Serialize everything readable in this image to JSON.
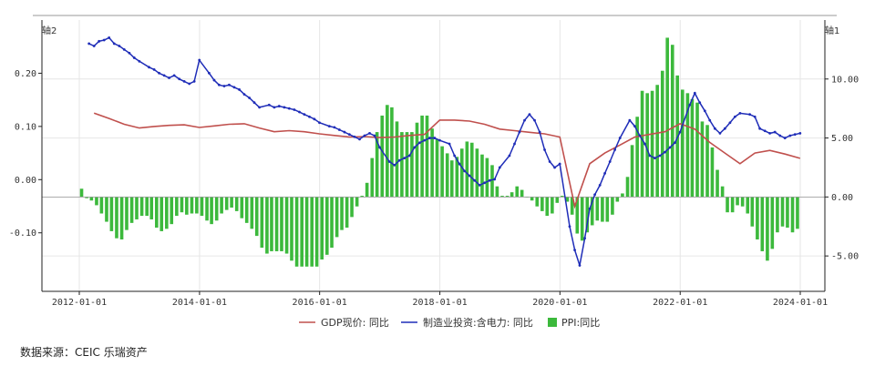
{
  "source_note": "数据来源：CEIC 乐瑞资产",
  "colors": {
    "gdp": "#c0504d",
    "manuf": "#1f2db8",
    "ppi": "#3cb93c",
    "axis": "#222222",
    "grid": "#e6e6e6",
    "top_rule": "#bbbbbb"
  },
  "chart_data": {
    "type": "bar+line",
    "legend_placement": "bottom",
    "grid": true,
    "x_axis": {
      "range": [
        "2012-01-01",
        "2024-01-01"
      ],
      "ticks": [
        "2012-01-01",
        "2014-01-01",
        "2016-01-01",
        "2018-01-01",
        "2020-01-01",
        "2022-01-01",
        "2024-01-01"
      ]
    },
    "y_left": {
      "label": "轴2",
      "range": [
        -0.21,
        0.3
      ],
      "ticks": [
        0.2,
        0.1,
        0.0,
        -0.1
      ],
      "tick_labels": [
        "0.20",
        "0.10",
        "0.00",
        "-0.10"
      ]
    },
    "y_right": {
      "label": "轴1",
      "range": [
        -8.0,
        15.0
      ],
      "ticks": [
        10.0,
        5.0,
        0.0,
        -5.0
      ],
      "tick_labels": [
        "10.00",
        "5.00",
        "0.00",
        "-5.00"
      ]
    },
    "series": [
      {
        "name": "GDP现价: 同比",
        "type": "line",
        "axis": "left",
        "marker": "none",
        "points": [
          [
            "2012-03-31",
            0.125
          ],
          [
            "2012-06-30",
            0.115
          ],
          [
            "2012-09-30",
            0.104
          ],
          [
            "2012-12-31",
            0.097
          ],
          [
            "2013-03-31",
            0.1
          ],
          [
            "2013-06-30",
            0.102
          ],
          [
            "2013-09-30",
            0.103
          ],
          [
            "2013-12-31",
            0.098
          ],
          [
            "2014-03-31",
            0.101
          ],
          [
            "2014-06-30",
            0.104
          ],
          [
            "2014-09-30",
            0.105
          ],
          [
            "2014-12-31",
            0.097
          ],
          [
            "2015-03-31",
            0.09
          ],
          [
            "2015-06-30",
            0.092
          ],
          [
            "2015-09-30",
            0.09
          ],
          [
            "2015-12-31",
            0.086
          ],
          [
            "2016-03-31",
            0.083
          ],
          [
            "2016-06-30",
            0.08
          ],
          [
            "2016-09-30",
            0.081
          ],
          [
            "2016-12-31",
            0.079
          ],
          [
            "2017-03-31",
            0.08
          ],
          [
            "2017-06-30",
            0.083
          ],
          [
            "2017-09-30",
            0.085
          ],
          [
            "2017-12-31",
            0.112
          ],
          [
            "2018-03-31",
            0.112
          ],
          [
            "2018-06-30",
            0.11
          ],
          [
            "2018-09-30",
            0.104
          ],
          [
            "2018-12-31",
            0.095
          ],
          [
            "2019-03-31",
            0.092
          ],
          [
            "2019-06-30",
            0.089
          ],
          [
            "2019-09-30",
            0.086
          ],
          [
            "2019-12-31",
            0.08
          ],
          [
            "2020-03-31",
            -0.05
          ],
          [
            "2020-06-30",
            0.03
          ],
          [
            "2020-09-30",
            0.05
          ],
          [
            "2020-12-31",
            0.065
          ],
          [
            "2021-03-31",
            0.08
          ],
          [
            "2021-06-30",
            0.085
          ],
          [
            "2021-09-30",
            0.09
          ],
          [
            "2021-12-31",
            0.105
          ],
          [
            "2022-03-31",
            0.095
          ],
          [
            "2022-06-30",
            0.07
          ],
          [
            "2022-09-30",
            0.05
          ],
          [
            "2022-12-31",
            0.03
          ],
          [
            "2023-03-31",
            0.05
          ],
          [
            "2023-06-30",
            0.055
          ],
          [
            "2023-09-30",
            0.048
          ],
          [
            "2023-12-31",
            0.04
          ]
        ]
      },
      {
        "name": "制造业投资:含电力: 同比",
        "type": "line",
        "axis": "right",
        "marker": "dot",
        "points": [
          [
            "2012-02-29",
            13.0
          ],
          [
            "2012-03-31",
            12.8
          ],
          [
            "2012-04-30",
            13.2
          ],
          [
            "2012-05-31",
            13.3
          ],
          [
            "2012-06-30",
            13.5
          ],
          [
            "2012-07-31",
            13.0
          ],
          [
            "2012-08-31",
            12.8
          ],
          [
            "2012-09-30",
            12.5
          ],
          [
            "2012-10-31",
            12.2
          ],
          [
            "2012-11-30",
            11.8
          ],
          [
            "2012-12-31",
            11.5
          ],
          [
            "2013-02-28",
            11.0
          ],
          [
            "2013-03-31",
            10.8
          ],
          [
            "2013-04-30",
            10.5
          ],
          [
            "2013-05-31",
            10.3
          ],
          [
            "2013-06-30",
            10.1
          ],
          [
            "2013-07-31",
            10.3
          ],
          [
            "2013-08-31",
            10.0
          ],
          [
            "2013-09-30",
            9.8
          ],
          [
            "2013-10-31",
            9.6
          ],
          [
            "2013-11-30",
            9.8
          ],
          [
            "2013-12-31",
            11.6
          ],
          [
            "2014-02-28",
            10.5
          ],
          [
            "2014-03-31",
            9.9
          ],
          [
            "2014-04-30",
            9.5
          ],
          [
            "2014-05-31",
            9.4
          ],
          [
            "2014-06-30",
            9.5
          ],
          [
            "2014-07-31",
            9.3
          ],
          [
            "2014-08-31",
            9.1
          ],
          [
            "2014-09-30",
            8.7
          ],
          [
            "2014-10-31",
            8.4
          ],
          [
            "2014-11-30",
            8.0
          ],
          [
            "2014-12-31",
            7.6
          ],
          [
            "2015-02-28",
            7.8
          ],
          [
            "2015-03-31",
            7.6
          ],
          [
            "2015-04-30",
            7.7
          ],
          [
            "2015-05-31",
            7.6
          ],
          [
            "2015-06-30",
            7.5
          ],
          [
            "2015-07-31",
            7.4
          ],
          [
            "2015-08-31",
            7.2
          ],
          [
            "2015-09-30",
            7.0
          ],
          [
            "2015-10-31",
            6.8
          ],
          [
            "2015-11-30",
            6.6
          ],
          [
            "2015-12-31",
            6.3
          ],
          [
            "2016-02-29",
            6.0
          ],
          [
            "2016-03-31",
            5.9
          ],
          [
            "2016-04-30",
            5.7
          ],
          [
            "2016-05-31",
            5.5
          ],
          [
            "2016-06-30",
            5.3
          ],
          [
            "2016-07-31",
            5.1
          ],
          [
            "2016-08-31",
            4.9
          ],
          [
            "2016-09-30",
            5.2
          ],
          [
            "2016-10-31",
            5.4
          ],
          [
            "2016-11-30",
            5.2
          ],
          [
            "2016-12-31",
            4.2
          ],
          [
            "2017-02-28",
            3.0
          ],
          [
            "2017-03-31",
            2.7
          ],
          [
            "2017-04-30",
            3.1
          ],
          [
            "2017-05-31",
            3.3
          ],
          [
            "2017-06-30",
            3.5
          ],
          [
            "2017-07-31",
            4.2
          ],
          [
            "2017-08-31",
            4.6
          ],
          [
            "2017-09-30",
            4.8
          ],
          [
            "2017-10-31",
            5.0
          ],
          [
            "2017-11-30",
            5.0
          ],
          [
            "2017-12-31",
            4.8
          ],
          [
            "2018-02-28",
            4.5
          ],
          [
            "2018-03-31",
            3.5
          ],
          [
            "2018-04-30",
            2.8
          ],
          [
            "2018-05-31",
            2.2
          ],
          [
            "2018-06-30",
            1.8
          ],
          [
            "2018-07-31",
            1.4
          ],
          [
            "2018-08-31",
            1.0
          ],
          [
            "2018-09-30",
            1.2
          ],
          [
            "2018-10-31",
            1.4
          ],
          [
            "2018-11-30",
            1.5
          ],
          [
            "2018-12-31",
            2.5
          ],
          [
            "2019-02-28",
            3.5
          ],
          [
            "2019-03-31",
            4.5
          ],
          [
            "2019-04-30",
            5.5
          ],
          [
            "2019-05-31",
            6.5
          ],
          [
            "2019-06-30",
            7.0
          ],
          [
            "2019-07-31",
            6.5
          ],
          [
            "2019-08-31",
            5.5
          ],
          [
            "2019-09-30",
            4.0
          ],
          [
            "2019-10-31",
            3.0
          ],
          [
            "2019-11-30",
            2.5
          ],
          [
            "2019-12-31",
            2.8
          ],
          [
            "2020-02-29",
            -2.5
          ],
          [
            "2020-03-31",
            -4.5
          ],
          [
            "2020-04-30",
            -5.8
          ],
          [
            "2020-05-31",
            -3.5
          ],
          [
            "2020-06-30",
            -1.0
          ],
          [
            "2020-07-31",
            0.2
          ],
          [
            "2020-08-31",
            1.0
          ],
          [
            "2020-09-30",
            2.0
          ],
          [
            "2020-10-31",
            3.0
          ],
          [
            "2020-11-30",
            4.0
          ],
          [
            "2020-12-31",
            5.0
          ],
          [
            "2021-02-28",
            6.5
          ],
          [
            "2021-03-31",
            6.0
          ],
          [
            "2021-04-30",
            5.2
          ],
          [
            "2021-05-31",
            4.5
          ],
          [
            "2021-06-30",
            3.5
          ],
          [
            "2021-07-31",
            3.3
          ],
          [
            "2021-08-31",
            3.5
          ],
          [
            "2021-09-30",
            3.8
          ],
          [
            "2021-10-31",
            4.2
          ],
          [
            "2021-11-30",
            4.6
          ],
          [
            "2021-12-31",
            5.5
          ],
          [
            "2022-02-28",
            7.8
          ],
          [
            "2022-03-31",
            8.8
          ],
          [
            "2022-04-30",
            8.0
          ],
          [
            "2022-05-31",
            7.3
          ],
          [
            "2022-06-30",
            6.5
          ],
          [
            "2022-07-31",
            5.8
          ],
          [
            "2022-08-31",
            5.4
          ],
          [
            "2022-09-30",
            5.8
          ],
          [
            "2022-10-31",
            6.3
          ],
          [
            "2022-11-30",
            6.8
          ],
          [
            "2022-12-31",
            7.1
          ],
          [
            "2023-02-28",
            7.0
          ],
          [
            "2023-03-31",
            6.8
          ],
          [
            "2023-04-30",
            5.8
          ],
          [
            "2023-05-31",
            5.6
          ],
          [
            "2023-06-30",
            5.4
          ],
          [
            "2023-07-31",
            5.5
          ],
          [
            "2023-08-31",
            5.2
          ],
          [
            "2023-09-30",
            5.0
          ],
          [
            "2023-10-31",
            5.2
          ],
          [
            "2023-11-30",
            5.3
          ],
          [
            "2023-12-31",
            5.4
          ]
        ]
      },
      {
        "name": "PPI:同比",
        "type": "bar",
        "axis": "right",
        "start_month": "2012-01",
        "values": [
          0.7,
          -0.1,
          -0.3,
          -0.7,
          -1.4,
          -2.1,
          -2.9,
          -3.5,
          -3.6,
          -2.8,
          -2.2,
          -1.9,
          -1.6,
          -1.6,
          -1.9,
          -2.6,
          -2.9,
          -2.7,
          -2.3,
          -1.6,
          -1.3,
          -1.5,
          -1.4,
          -1.4,
          -1.6,
          -2.0,
          -2.3,
          -2.0,
          -1.4,
          -1.1,
          -0.9,
          -1.2,
          -1.8,
          -2.2,
          -2.7,
          -3.3,
          -4.3,
          -4.8,
          -4.6,
          -4.6,
          -4.6,
          -4.8,
          -5.4,
          -5.9,
          -5.9,
          -5.9,
          -5.9,
          -5.9,
          -5.3,
          -4.9,
          -4.3,
          -3.4,
          -2.8,
          -2.6,
          -1.7,
          -0.8,
          0.1,
          1.2,
          3.3,
          5.5,
          6.9,
          7.8,
          7.6,
          6.4,
          5.5,
          5.5,
          5.5,
          6.3,
          6.9,
          6.9,
          5.8,
          4.9,
          4.3,
          3.7,
          3.1,
          3.4,
          4.1,
          4.7,
          4.6,
          4.1,
          3.6,
          3.3,
          2.7,
          0.9,
          0.1,
          0.1,
          0.4,
          0.9,
          0.6,
          0.0,
          -0.3,
          -0.8,
          -1.2,
          -1.6,
          -1.4,
          -0.5,
          0.1,
          -0.4,
          -1.5,
          -3.1,
          -3.7,
          -3.0,
          -2.4,
          -2.0,
          -2.1,
          -2.1,
          -1.5,
          -0.4,
          0.3,
          1.7,
          4.4,
          6.8,
          9.0,
          8.8,
          9.0,
          9.5,
          10.7,
          13.5,
          12.9,
          10.3,
          9.1,
          8.8,
          8.3,
          8.0,
          6.4,
          6.1,
          4.2,
          2.3,
          0.9,
          -1.3,
          -1.3,
          -0.7,
          -0.8,
          -1.4,
          -2.5,
          -3.6,
          -4.6,
          -5.4,
          -4.4,
          -3.0,
          -2.5,
          -2.6,
          -3.0,
          -2.7
        ]
      }
    ]
  }
}
